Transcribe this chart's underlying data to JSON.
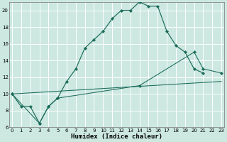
{
  "xlabel": "Humidex (Indice chaleur)",
  "bg_color": "#cce8e0",
  "line_color": "#1a6b5a",
  "grid_color": "#ffffff",
  "xlim": [
    -0.5,
    23.5
  ],
  "ylim": [
    6,
    21
  ],
  "yticks": [
    6,
    8,
    10,
    12,
    14,
    16,
    18,
    20
  ],
  "xticks": [
    0,
    1,
    2,
    3,
    4,
    5,
    6,
    7,
    8,
    9,
    10,
    11,
    12,
    13,
    14,
    15,
    16,
    17,
    18,
    19,
    20,
    21,
    22,
    23
  ],
  "curve1_x": [
    0,
    1,
    2,
    3,
    4,
    5,
    6,
    7,
    8,
    9,
    10,
    11,
    12,
    13,
    14,
    15,
    16,
    17,
    18,
    19,
    20,
    21
  ],
  "curve1_y": [
    10.0,
    8.5,
    8.5,
    6.5,
    8.5,
    9.5,
    11.5,
    13.0,
    15.5,
    16.5,
    17.5,
    19.0,
    20.0,
    20.0,
    21.0,
    20.5,
    20.5,
    17.5,
    15.8,
    15.0,
    13.0,
    12.5
  ],
  "curve2_x": [
    0,
    23
  ],
  "curve2_y": [
    10.0,
    11.5
  ],
  "curve3_x": [
    0,
    3,
    4,
    5,
    14,
    20,
    21,
    23
  ],
  "curve3_y": [
    10.0,
    6.5,
    8.5,
    9.5,
    11.0,
    15.0,
    13.0,
    12.5
  ],
  "xlabel_fontsize": 6.5,
  "tick_fontsize": 5.0
}
